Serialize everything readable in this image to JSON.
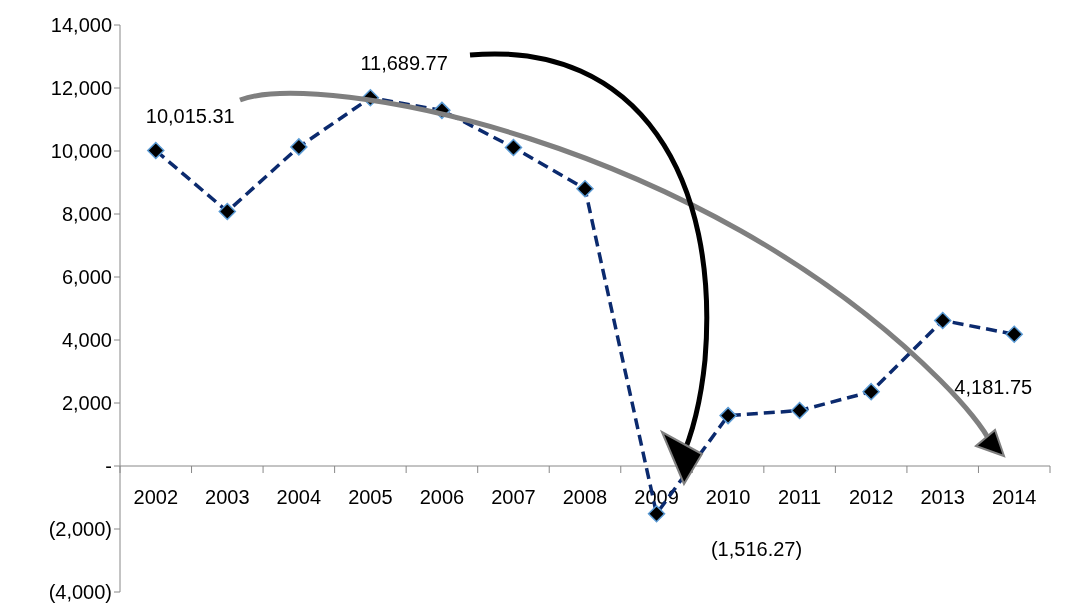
{
  "chart_data": {
    "type": "line",
    "categories": [
      "2002",
      "2003",
      "2004",
      "2005",
      "2006",
      "2007",
      "2008",
      "2009",
      "2010",
      "2011",
      "2012",
      "2013",
      "2014"
    ],
    "series": [
      {
        "color": "#0b2a6e",
        "values": [
          10015.31,
          8080,
          10130,
          11689.77,
          11290,
          10110,
          8800,
          -1516.27,
          1600,
          1760,
          2360,
          4620,
          4181.75
        ]
      }
    ],
    "ylim": [
      -4000,
      14000
    ],
    "yticks": [
      {
        "value": -4000,
        "label": "(4,000)"
      },
      {
        "value": -2000,
        "label": "(2,000)"
      },
      {
        "value": 0,
        "label": "-"
      },
      {
        "value": 2000,
        "label": "2,000"
      },
      {
        "value": 4000,
        "label": "4,000"
      },
      {
        "value": 6000,
        "label": "6,000"
      },
      {
        "value": 8000,
        "label": "8,000"
      },
      {
        "value": 10000,
        "label": "10,000"
      },
      {
        "value": 12000,
        "label": "12,000"
      },
      {
        "value": 14000,
        "label": "14,000"
      }
    ],
    "annotations": [
      {
        "text": "10,015.31",
        "x": "2002",
        "y": 10015.31
      },
      {
        "text": "11,689.77",
        "x": "2005",
        "y": 11689.77
      },
      {
        "text": "(1,516.27)",
        "x": "2009",
        "y": -1516.27
      },
      {
        "text": "4,181.75",
        "x": "2014",
        "y": 4181.75
      }
    ],
    "grid": false,
    "marker": "diamond",
    "line_style": "dashed"
  }
}
